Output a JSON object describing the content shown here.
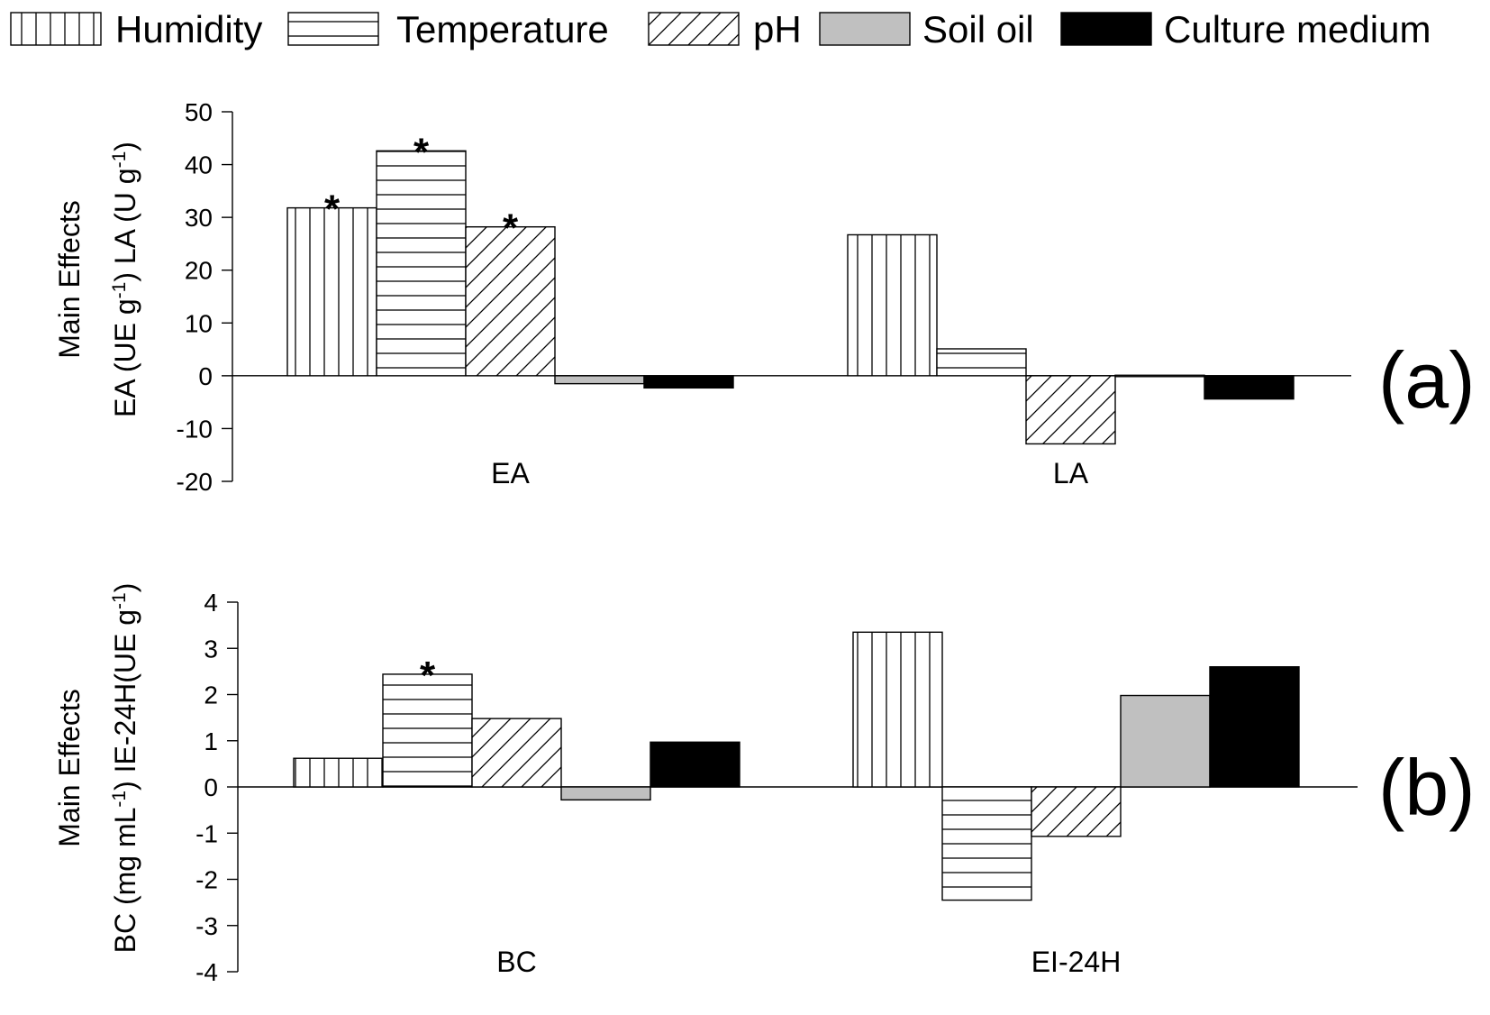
{
  "legend": {
    "position": "top",
    "items": [
      {
        "label": "Humidity",
        "pattern": "vertical"
      },
      {
        "label": "Temperature",
        "pattern": "horizontal"
      },
      {
        "label": "pH",
        "pattern": "diagonal"
      },
      {
        "label": "Soil oil",
        "pattern": "gray"
      },
      {
        "label": "Culture medium",
        "pattern": "black"
      }
    ]
  },
  "colors": {
    "gray": "#c0c0c0",
    "black": "#000000",
    "line": "#000000"
  },
  "chart_data": [
    {
      "type": "bar",
      "panel": "(a)",
      "ylabel_line1": "Main Effects",
      "ylabel_line2": "EA (UE g-1) LA (U g-1)",
      "ylim": [
        -20,
        50
      ],
      "yticks": [
        -20,
        -10,
        0,
        10,
        20,
        30,
        40,
        50
      ],
      "grid": false,
      "categories": [
        "EA",
        "LA"
      ],
      "series": [
        {
          "name": "Humidity",
          "values": [
            31.8,
            26.7
          ]
        },
        {
          "name": "Temperature",
          "values": [
            42.6,
            5.1
          ]
        },
        {
          "name": "pH",
          "values": [
            28.2,
            -12.9
          ]
        },
        {
          "name": "Soil oil",
          "values": [
            -1.5,
            0.1
          ]
        },
        {
          "name": "Culture medium",
          "values": [
            -2.3,
            -4.4
          ]
        }
      ],
      "significant": [
        {
          "series": "Humidity",
          "category": "EA",
          "mark": "*"
        },
        {
          "series": "Temperature",
          "category": "EA",
          "mark": "*"
        },
        {
          "series": "pH",
          "category": "EA",
          "mark": "*"
        }
      ]
    },
    {
      "type": "bar",
      "panel": "(b)",
      "ylabel_line1": "Main Effects",
      "ylabel_line2": "BC (mg mL-1) IE-24H(UE g-1)",
      "ylim": [
        -4,
        4
      ],
      "yticks": [
        -4,
        -3,
        -2,
        -1,
        0,
        1,
        2,
        3,
        4
      ],
      "grid": false,
      "categories": [
        "BC",
        "EI-24H"
      ],
      "series": [
        {
          "name": "Humidity",
          "values": [
            0.62,
            3.35
          ]
        },
        {
          "name": "Temperature",
          "values": [
            2.44,
            -2.45
          ]
        },
        {
          "name": "pH",
          "values": [
            1.48,
            -1.07
          ]
        },
        {
          "name": "Soil oil",
          "values": [
            -0.28,
            1.98
          ]
        },
        {
          "name": "Culture medium",
          "values": [
            0.97,
            2.6
          ]
        }
      ],
      "significant": [
        {
          "series": "Temperature",
          "category": "BC",
          "mark": "*"
        }
      ]
    }
  ]
}
